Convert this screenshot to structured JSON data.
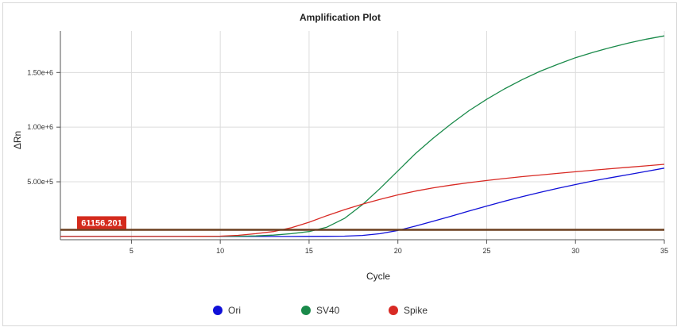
{
  "chart_data": {
    "type": "line",
    "title": "Amplification Plot",
    "xlabel": "Cycle",
    "ylabel": "ΔRn",
    "xlim": [
      1,
      35
    ],
    "ylim": [
      -30000,
      1880000
    ],
    "x_ticks": [
      5,
      10,
      15,
      20,
      25,
      30,
      35
    ],
    "x_tick_labels": [
      "5",
      "10",
      "15",
      "20",
      "25",
      "30",
      "35"
    ],
    "y_ticks": [
      500000,
      1000000,
      1500000
    ],
    "y_tick_labels": [
      "5.00e+5",
      "1.00e+6",
      "1.50e+6"
    ],
    "grid": true,
    "legend_position": "bottom",
    "threshold": {
      "value": 61156.201,
      "label": "61156.201",
      "color": "#6b3f1f",
      "label_bg": "#d42a1c"
    },
    "series": [
      {
        "name": "Ori",
        "color": "#1010d8",
        "x": [
          1,
          6,
          10,
          12,
          14,
          16,
          17,
          18,
          19,
          20,
          21,
          22,
          23,
          24,
          25,
          26,
          27,
          28,
          29,
          30,
          31,
          32,
          33,
          34,
          35
        ],
        "y": [
          0,
          0,
          0,
          0,
          0,
          1000,
          3000,
          9000,
          25000,
          55000,
          95000,
          140000,
          185000,
          232000,
          278000,
          322000,
          364000,
          403000,
          440000,
          475000,
          508000,
          538000,
          566000,
          595000,
          625000
        ]
      },
      {
        "name": "SV40",
        "color": "#1a8a4a",
        "x": [
          1,
          8,
          11,
          12,
          13,
          14,
          15,
          16,
          17,
          18,
          19,
          20,
          21,
          22,
          23,
          24,
          25,
          26,
          27,
          28,
          29,
          30,
          31,
          32,
          33,
          34,
          35
        ],
        "y": [
          0,
          0,
          2000,
          5000,
          12000,
          25000,
          45000,
          85000,
          165000,
          290000,
          440000,
          600000,
          760000,
          900000,
          1030000,
          1150000,
          1255000,
          1350000,
          1435000,
          1510000,
          1575000,
          1635000,
          1685000,
          1730000,
          1770000,
          1805000,
          1835000
        ]
      },
      {
        "name": "Spike",
        "color": "#d82a24",
        "x": [
          1,
          8,
          10,
          11,
          12,
          13,
          14,
          15,
          16,
          17,
          18,
          19,
          20,
          21,
          22,
          23,
          24,
          25,
          26,
          27,
          28,
          29,
          30,
          31,
          32,
          33,
          34,
          35
        ],
        "y": [
          0,
          0,
          3000,
          10000,
          25000,
          45000,
          80000,
          130000,
          190000,
          245000,
          295000,
          340000,
          380000,
          415000,
          445000,
          470000,
          492000,
          512000,
          530000,
          547000,
          562000,
          577000,
          592000,
          606000,
          620000,
          633000,
          646000,
          660000
        ]
      }
    ]
  }
}
